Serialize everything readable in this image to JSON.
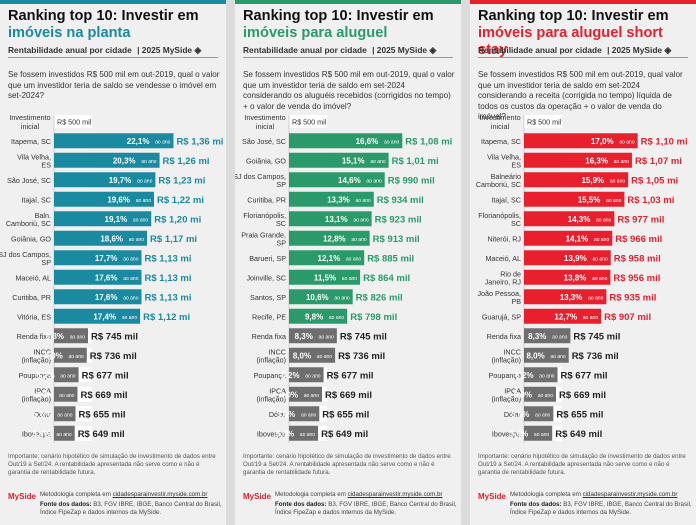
{
  "panels": [
    {
      "accent": "#1a8aa0",
      "title_line1": "Ranking top 10: Investir em",
      "title_highlight": "imóveis na planta",
      "subtitle": "Rentabilidade anual por cidade",
      "year": "| 2025",
      "logo": "MySide",
      "question": "Se fossem investidos R$ 500 mil em out-2019, qual o valor que um investidor teria de saldo se vendesse o imóvel em set-2024?",
      "axis_header": "Investimento inicial",
      "initial_label": "R$ 500 mil",
      "note": "Importante: cenário hipotético de simulação de investimento de dados entre Out/19 a Set/24. A rentabilidade apresentada não serve como e não é garantia de rentabilidade futura.",
      "brand": "MySide",
      "methodology_prefix": "Metodologia completa em ",
      "methodology_link": "cidadesparainvestir.myside.com.br",
      "source_label": "Fonte dos dados:",
      "source_text": " B3, FGV IBRE, IBGE, Banco Central do Brasil, Índice FipeZap e dados internos da MySide."
    },
    {
      "accent": "#2a9a6a",
      "title_line1": "Ranking top 10: Investir em",
      "title_highlight": "imóveis para aluguel",
      "subtitle": "Rentabilidade anual por cidade",
      "year": "| 2025",
      "logo": "MySide",
      "question": "Se fossem investidos R$ 500 mil em out-2019, qual o valor que um investidor teria de saldo em set-2024 considerando os aluguéis recebidos (corrigidos no tempo) + o valor de venda do imóvel?",
      "axis_header": "Investimento inicial",
      "initial_label": "R$ 500 mil",
      "note": "Importante: cenário hipotético de simulação de investimento de dados entre Out/19 a Set/24. A rentabilidade apresentada não serve como e não é garantia de rentabilidade futura.",
      "brand": "MySide",
      "methodology_prefix": "Metodologia completa em ",
      "methodology_link": "cidadesparainvestir.myside.com.br",
      "source_label": "Fonte dos dados:",
      "source_text": " B3, FGV IBRE, IBGE, Banco Central do Brasil, Índice FipeZap e dados internos da MySide."
    },
    {
      "accent": "#e8202e",
      "title_line1": "Ranking top 10: Investir em",
      "title_highlight": "imóveis para aluguel short stay",
      "subtitle": "Rentabilidade anual por cidade",
      "year": "| 2025",
      "logo": "MySide",
      "question": "Se fossem investidos R$ 500 mil em out-2019, qual valor que um investidor teria de saldo em set-2024 considerando a receita (corrigida no tempo) líquida de todos os custos da operação + o valor de venda do imóvel?",
      "axis_header": "Investimento inicial",
      "initial_label": "R$ 500 mil",
      "note": "Importante: cenário hipotético de simulação de investimento de dados entre Out/19 a Set/24. A rentabilidade apresentada não serve como e não é garantia de rentabilidade futura.",
      "brand": "MySide",
      "methodology_prefix": "Metodologia completa em ",
      "methodology_link": "cidadesparainvestir.myside.com.br",
      "source_label": "Fonte dos dados:",
      "source_text": " B3, FGV IBRE, IBGE, Banco Central do Brasil, Índice FipeZap e dados internos da MySide."
    }
  ],
  "chart_data": [
    {
      "type": "bar",
      "orientation": "horizontal",
      "title": "Ranking top 10: Investir em imóveis na planta",
      "unit_suffix": "ao ano",
      "baseline_label": "R$ 500 mil",
      "ranked_color": "#1a8aa0",
      "benchmark_color": "#6e6e6e",
      "categories": [
        "Itapema, SC",
        "Vila Velha, ES",
        "São José, SC",
        "Itajaí, SC",
        "Baln. Camboriú, SC",
        "Goiânia, GO",
        "SJ dos Campos, SP",
        "Maceió, AL",
        "Curitiba, PR",
        "Vitória, ES",
        "Renda fixa",
        "INCC (inflação)",
        "Poupança",
        "IPCA (inflação)",
        "Dólar",
        "Ibovespa"
      ],
      "rates": [
        "22,1%",
        "20,3%",
        "19,7%",
        "19,6%",
        "19,1%",
        "18,6%",
        "17,7%",
        "17,6%",
        "17,6%",
        "17,4%",
        "8,3%",
        "8,0%",
        "6,2%",
        "6,0%",
        "5,6%",
        "5,4%"
      ],
      "values_label": [
        "R$ 1,36 mi",
        "R$ 1,26 mi",
        "R$ 1,23 mi",
        "R$ 1,22 mi",
        "R$ 1,20 mi",
        "R$ 1,17 mi",
        "R$ 1,13 mi",
        "R$ 1,13 mi",
        "R$ 1,13 mi",
        "R$ 1,12 mi",
        "R$ 745 mil",
        "R$ 736 mil",
        "R$ 677 mil",
        "R$ 669 mil",
        "R$ 655 mil",
        "R$ 649 mil"
      ],
      "values": [
        1360,
        1260,
        1230,
        1220,
        1200,
        1170,
        1130,
        1130,
        1130,
        1120,
        745,
        736,
        677,
        669,
        655,
        649
      ],
      "ranked_count": 10,
      "xlim": [
        500,
        1400
      ]
    },
    {
      "type": "bar",
      "orientation": "horizontal",
      "title": "Ranking top 10: Investir em imóveis para aluguel",
      "unit_suffix": "ao ano",
      "baseline_label": "R$ 500 mil",
      "ranked_color": "#2a9a6a",
      "benchmark_color": "#6e6e6e",
      "categories": [
        "São José, SC",
        "Goiânia, GO",
        "SJ dos Campos, SP",
        "Curitiba, PR",
        "Florianópolis, SC",
        "Praia Grande, SP",
        "Barueri, SP",
        "Joinville, SC",
        "Santos, SP",
        "Recife, PE",
        "Renda fixa",
        "INCC (inflação)",
        "Poupança",
        "IPCA (inflação)",
        "Dólar",
        "Ibovespa"
      ],
      "rates": [
        "16,6%",
        "15,1%",
        "14,6%",
        "13,3%",
        "13,1%",
        "12,8%",
        "12,1%",
        "11,5%",
        "10,6%",
        "9,8%",
        "8,3%",
        "8,0%",
        "6,2%",
        "6,0%",
        "5,6%",
        "5,4%"
      ],
      "values_label": [
        "R$ 1,08 mi",
        "R$ 1,01 mi",
        "R$ 990 mil",
        "R$ 934 mil",
        "R$ 923 mil",
        "R$ 913 mil",
        "R$ 885 mil",
        "R$ 864 mil",
        "R$ 826 mil",
        "R$ 798 mil",
        "R$ 745 mil",
        "R$ 736 mil",
        "R$ 677 mil",
        "R$ 669 mil",
        "R$ 655 mil",
        "R$ 649 mil"
      ],
      "values": [
        1080,
        1010,
        990,
        934,
        923,
        913,
        885,
        864,
        826,
        798,
        745,
        736,
        677,
        669,
        655,
        649
      ],
      "ranked_count": 10,
      "xlim": [
        500,
        1140
      ]
    },
    {
      "type": "bar",
      "orientation": "horizontal",
      "title": "Ranking top 10: Investir em imóveis para aluguel short stay",
      "unit_suffix": "ao ano",
      "baseline_label": "R$ 500 mil",
      "ranked_color": "#e8202e",
      "benchmark_color": "#6e6e6e",
      "categories": [
        "Itapema, SC",
        "Vila Velha, ES",
        "Balneário Camboriú, SC",
        "Itajaí, SC",
        "Florianópolis, SC",
        "Niterói, RJ",
        "Maceió, AL",
        "Rio de Janeiro, RJ",
        "João Pessoa, PB",
        "Guarujá, SP",
        "Renda fixa",
        "INCC (inflação)",
        "Poupança",
        "IPCA (inflação)",
        "Dólar",
        "Ibovespa"
      ],
      "rates": [
        "17,0%",
        "16,3%",
        "15,9%",
        "15,5%",
        "14,3%",
        "14,1%",
        "13,9%",
        "13,8%",
        "13,3%",
        "12,7%",
        "8,3%",
        "8,0%",
        "6,2%",
        "6,0%",
        "5,6%",
        "5,4%"
      ],
      "values_label": [
        "R$ 1,10 mi",
        "R$ 1,07 mi",
        "R$ 1,05 mi",
        "R$ 1,03 mi",
        "R$ 977 mil",
        "R$ 966 mil",
        "R$ 958 mil",
        "R$ 956 mil",
        "R$ 935 mil",
        "R$ 907 mil",
        "R$ 745 mil",
        "R$ 736 mil",
        "R$ 677 mil",
        "R$ 669 mil",
        "R$ 655 mil",
        "R$ 649 mil"
      ],
      "values": [
        1100,
        1070,
        1050,
        1030,
        977,
        966,
        958,
        956,
        935,
        907,
        745,
        736,
        677,
        669,
        655,
        649
      ],
      "ranked_count": 10,
      "xlim": [
        500,
        1160
      ]
    }
  ]
}
